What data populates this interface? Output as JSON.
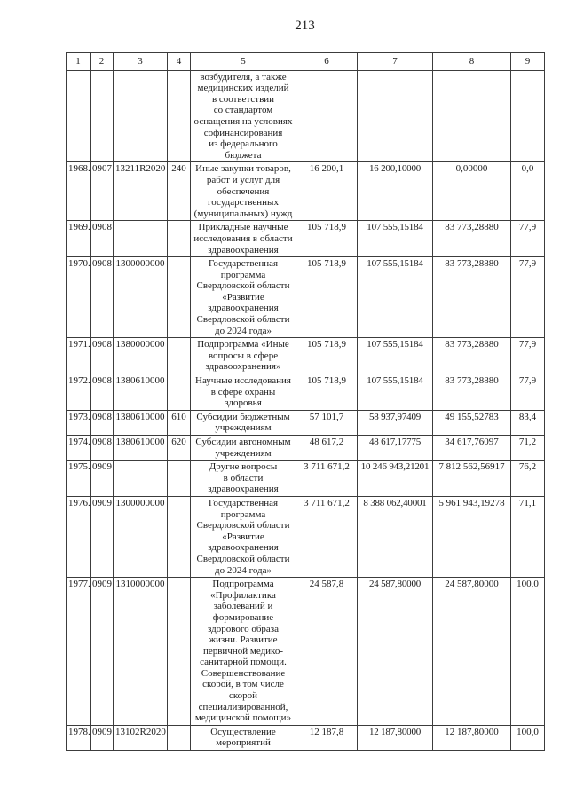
{
  "page": {
    "number": "213"
  },
  "table": {
    "column_headers": [
      "1",
      "2",
      "3",
      "4",
      "5",
      "6",
      "7",
      "8",
      "9"
    ],
    "rows": [
      {
        "cells": [
          "",
          "",
          "",
          "",
          "возбудителя, а также\nмедицинских изделий\nв соответствии\nсо стандартом\nоснащения на условиях\nсофинансирования\nиз федерального\nбюджета",
          "",
          "",
          "",
          ""
        ]
      },
      {
        "cells": [
          "1968.",
          "0907",
          "13211R2020",
          "240",
          "Иные закупки товаров,\nработ и услуг для\nобеспечения\nгосударственных\n(муниципальных) нужд",
          "16 200,1",
          "16 200,10000",
          "0,00000",
          "0,0"
        ]
      },
      {
        "cells": [
          "1969.",
          "0908",
          "",
          "",
          "Прикладные научные\nисследования в области\nздравоохранения",
          "105 718,9",
          "107 555,15184",
          "83 773,28880",
          "77,9"
        ]
      },
      {
        "cells": [
          "1970.",
          "0908",
          "1300000000",
          "",
          "Государственная\nпрограмма\nСвердловской области\n«Развитие\nздравоохранения\nСвердловской области\nдо 2024 года»",
          "105 718,9",
          "107 555,15184",
          "83 773,28880",
          "77,9"
        ]
      },
      {
        "cells": [
          "1971.",
          "0908",
          "1380000000",
          "",
          "Подпрограмма «Иные\nвопросы в сфере\nздравоохранения»",
          "105 718,9",
          "107 555,15184",
          "83 773,28880",
          "77,9"
        ]
      },
      {
        "cells": [
          "1972.",
          "0908",
          "1380610000",
          "",
          "Научные исследования\nв сфере охраны\nздоровья",
          "105 718,9",
          "107 555,15184",
          "83 773,28880",
          "77,9"
        ]
      },
      {
        "cells": [
          "1973.",
          "0908",
          "1380610000",
          "610",
          "Субсидии бюджетным\nучреждениям",
          "57 101,7",
          "58 937,97409",
          "49 155,52783",
          "83,4"
        ]
      },
      {
        "cells": [
          "1974.",
          "0908",
          "1380610000",
          "620",
          "Субсидии автономным\nучреждениям",
          "48 617,2",
          "48 617,17775",
          "34 617,76097",
          "71,2"
        ]
      },
      {
        "cells": [
          "1975.",
          "0909",
          "",
          "",
          "Другие вопросы\nв области\nздравоохранения",
          "3 711 671,2",
          "10 246 943,21201",
          "7 812 562,56917",
          "76,2"
        ]
      },
      {
        "cells": [
          "1976.",
          "0909",
          "1300000000",
          "",
          "Государственная\nпрограмма\nСвердловской области\n«Развитие\nздравоохранения\nСвердловской области\nдо 2024 года»",
          "3 711 671,2",
          "8 388 062,40001",
          "5 961 943,19278",
          "71,1"
        ]
      },
      {
        "cells": [
          "1977.",
          "0909",
          "1310000000",
          "",
          "Подпрограмма\n«Профилактика\nзаболеваний и\nформирование\nздорового образа\nжизни. Развитие\nпервичной медико-\nсанитарной помощи.\nСовершенствование\nскорой, в том числе\nскорой\nспециализированной,\nмедицинской помощи»",
          "24 587,8",
          "24 587,80000",
          "24 587,80000",
          "100,0"
        ]
      },
      {
        "cells": [
          "1978.",
          "0909",
          "13102R2020",
          "",
          "Осуществление\nмероприятий",
          "12 187,8",
          "12 187,80000",
          "12 187,80000",
          "100,0"
        ]
      }
    ]
  }
}
